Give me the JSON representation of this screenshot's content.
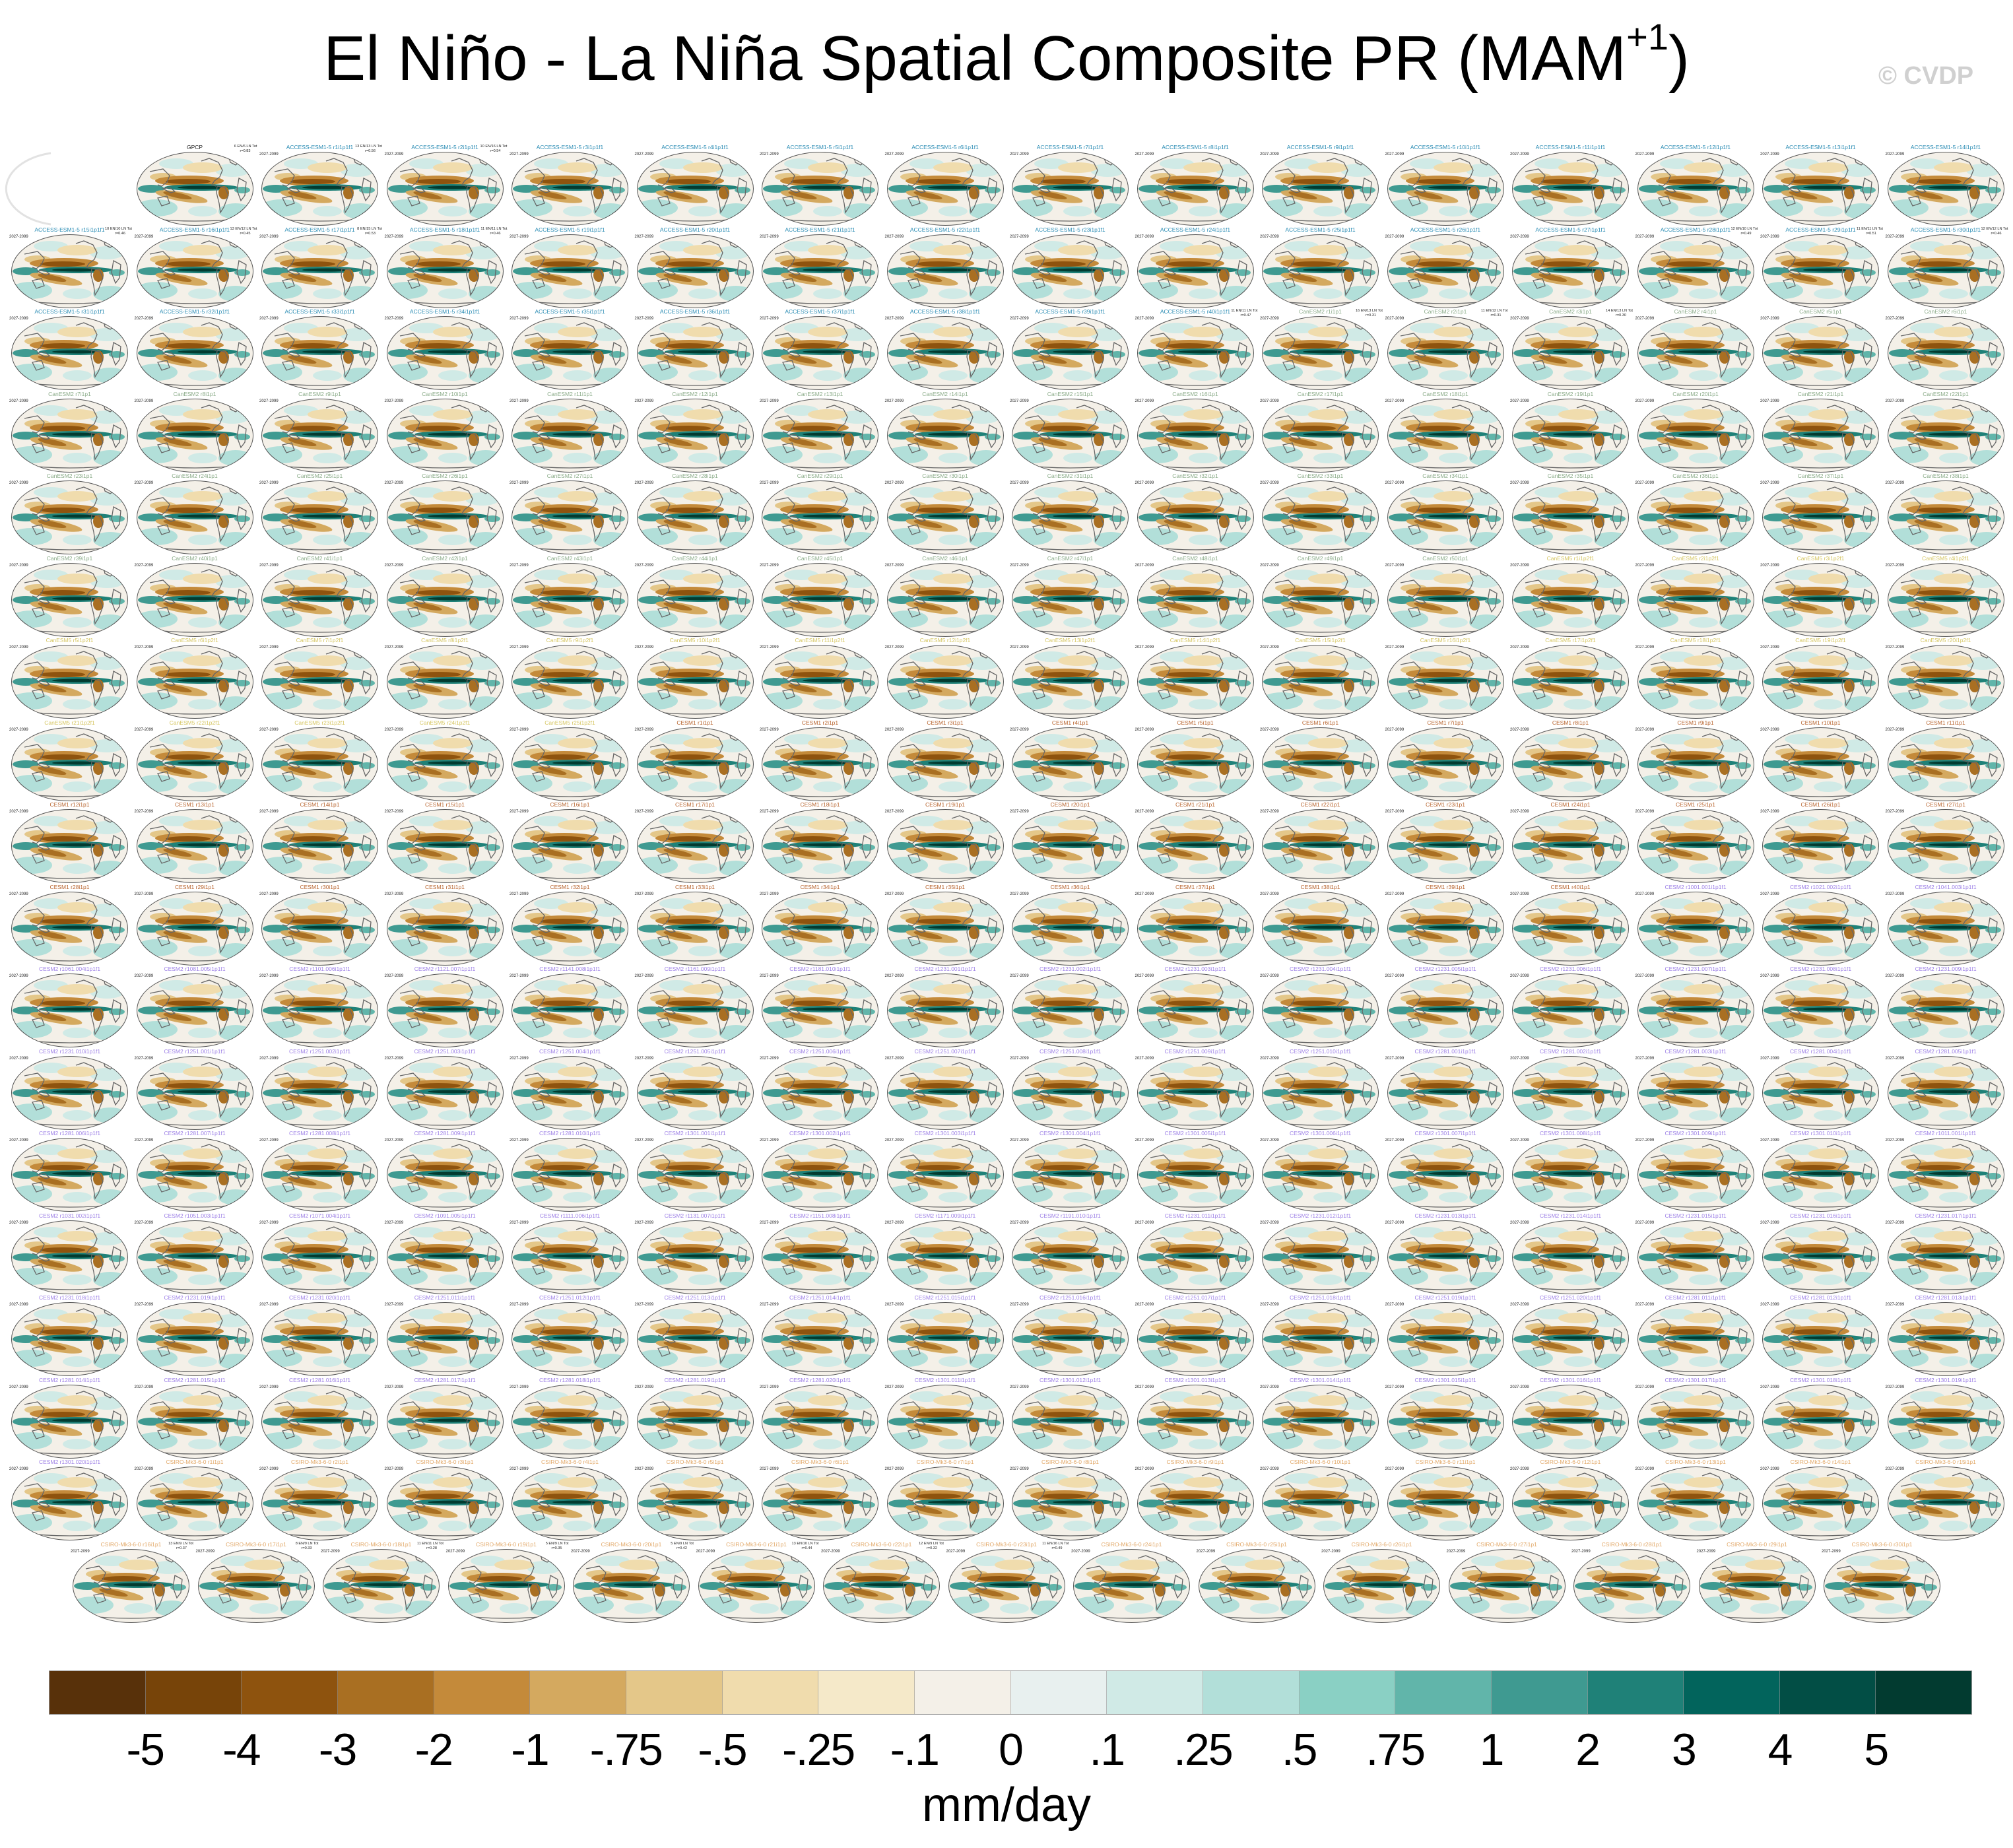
{
  "title": {
    "main": "El Niño - La Niña Spatial Composite PR (MAM",
    "sup": "+1",
    "close": ")"
  },
  "watermark": "© CVDP",
  "period": "2027-2099",
  "groups": [
    {
      "model": "GPCP",
      "color": "#222222",
      "members": [
        ""
      ],
      "observational": true
    },
    {
      "model": "ACCESS-ESM1-5",
      "color": "#2a8cb4",
      "member_range": [
        1,
        40
      ],
      "member_suffix": "i1p1f1"
    },
    {
      "model": "CanESM2",
      "color": "#8aab88",
      "member_range": [
        1,
        50
      ],
      "member_suffix": "i1p1"
    },
    {
      "model": "CanESM5",
      "color": "#d6c662",
      "member_range": [
        1,
        25
      ],
      "member_suffix": "i1p2f1"
    },
    {
      "model": "CESM1",
      "color": "#b8642e",
      "member_range": [
        1,
        40
      ],
      "member_suffix": "i1p1"
    },
    {
      "model": "CESM2",
      "color": "#9d80e6",
      "member_suffix": "i1p1f1",
      "members": [
        "r1001.001",
        "r1021.002",
        "r1041.003",
        "r1061.004",
        "r1081.005",
        "r1101.006",
        "r1121.007",
        "r1141.008",
        "r1161.009",
        "r1181.010",
        "r1231.001",
        "r1231.002",
        "r1231.003",
        "r1231.004",
        "r1231.005",
        "r1231.006",
        "r1231.007",
        "r1231.008",
        "r1231.009",
        "r1231.010",
        "r1251.001",
        "r1251.002",
        "r1251.003",
        "r1251.004",
        "r1251.005",
        "r1251.006",
        "r1251.007",
        "r1251.008",
        "r1251.009",
        "r1251.010",
        "r1281.001",
        "r1281.002",
        "r1281.003",
        "r1281.004",
        "r1281.005",
        "r1281.006",
        "r1281.007",
        "r1281.008",
        "r1281.009",
        "r1281.010",
        "r1301.001",
        "r1301.002",
        "r1301.003",
        "r1301.004",
        "r1301.005",
        "r1301.006",
        "r1301.007",
        "r1301.008",
        "r1301.009",
        "r1301.010",
        "r1011.001",
        "r1031.002",
        "r1051.003",
        "r1071.004",
        "r1091.005",
        "r1111.006",
        "r1131.007",
        "r1151.008",
        "r1171.009",
        "r1191.010",
        "r1231.011",
        "r1231.012",
        "r1231.013",
        "r1231.014",
        "r1231.015",
        "r1231.016",
        "r1231.017",
        "r1231.018",
        "r1231.019",
        "r1231.020",
        "r1251.011",
        "r1251.012",
        "r1251.013",
        "r1251.014",
        "r1251.015",
        "r1251.016",
        "r1251.017",
        "r1251.018",
        "r1251.019",
        "r1251.020",
        "r1281.011",
        "r1281.012",
        "r1281.013",
        "r1281.014",
        "r1281.015",
        "r1281.016",
        "r1281.017",
        "r1281.018",
        "r1281.019",
        "r1281.020",
        "r1301.011",
        "r1301.012",
        "r1301.013",
        "r1301.014",
        "r1301.015",
        "r1301.016",
        "r1301.017",
        "r1301.018",
        "r1301.019",
        "r1301.020"
      ]
    },
    {
      "model": "CSIRO-Mk3-6-0",
      "color": "#e2a868",
      "member_range": [
        1,
        30
      ],
      "member_suffix": "i1p1"
    }
  ],
  "stats": {
    "GPCP": [
      "6 EN/6 LN Tot",
      "r=0.83"
    ],
    "ACCESS-ESM1-5 r1i1p1f1": [
      "13 EN/13 LN Tot",
      "r=0.56"
    ],
    "ACCESS-ESM1-5 r2i1p1f1": [
      "10 EN/16 LN Tot",
      "r=0.54"
    ],
    "ACCESS-ESM1-5 r15i1p1f1": [
      "10 EN/10 LN Tot",
      "r=0.46"
    ],
    "ACCESS-ESM1-5 r16i1p1f1": [
      "13 EN/12 LN Tot",
      "r=0.45"
    ],
    "ACCESS-ESM1-5 r17i1p1f1": [
      "8 EN/15 LN Tot",
      "r=0.53"
    ],
    "ACCESS-ESM1-5 r18i1p1f1": [
      "11 EN/11 LN Tot",
      "r=0.46"
    ],
    "ACCESS-ESM1-5 r28i1p1f1": [
      "12 EN/10 LN Tot",
      "r=0.49"
    ],
    "ACCESS-ESM1-5 r29i1p1f1": [
      "11 EN/11 LN Tot",
      "r=0.51"
    ],
    "ACCESS-ESM1-5 r30i1p1f1": [
      "12 EN/12 LN Tot",
      "r=0.46"
    ],
    "ACCESS-ESM1-5 r40i1p1f1": [
      "11 EN/11 LN Tot",
      "r=0.47"
    ],
    "CanESM2 r1i1p1": [
      "16 EN/13 LN Tot",
      "r=0.31"
    ],
    "CanESM2 r2i1p1": [
      "11 EN/12 LN Tot",
      "r=0.31"
    ],
    "CanESM2 r3i1p1": [
      "14 EN/13 LN Tot",
      "r=0.30"
    ],
    "CSIRO-Mk3-6-0 r16i1p1": [
      "13 EN/9 LN Tot",
      "r=0.37"
    ],
    "CSIRO-Mk3-6-0 r17i1p1": [
      "8 EN/9 LN Tot",
      "r=0.33"
    ],
    "CSIRO-Mk3-6-0 r18i1p1": [
      "11 EN/11 LN Tot",
      "r=0.28"
    ],
    "CSIRO-Mk3-6-0 r19i1p1": [
      "5 EN/9 LN Tot",
      "r=0.35"
    ],
    "CSIRO-Mk3-6-0 r20i1p1": [
      "5 EN/9 LN Tot",
      "r=0.42"
    ],
    "CSIRO-Mk3-6-0 r21i1p1": [
      "13 EN/10 LN Tot",
      "r=0.44"
    ],
    "CSIRO-Mk3-6-0 r22i1p1": [
      "12 EN/9 LN Tot",
      "r=0.32"
    ],
    "CSIRO-Mk3-6-0 r23i1p1": [
      "11 EN/16 LN Tot",
      "r=0.49"
    ]
  },
  "chart_data": {
    "type": "heatmap",
    "title": "El Niño - La Niña Spatial Composite PR (MAM+1)",
    "projection": "global map panels, one per dataset/ensemble member",
    "colorbar": {
      "units": "mm/day",
      "labels": [
        "-5",
        "-4",
        "-3",
        "-2",
        "-1",
        "-.75",
        "-.5",
        "-.25",
        "-.1",
        "0",
        ".1",
        ".25",
        ".5",
        ".75",
        "1",
        "2",
        "3",
        "4",
        "5"
      ],
      "colors": [
        "#58310a",
        "#774409",
        "#8e530e",
        "#a96f22",
        "#c48a3a",
        "#d4a95f",
        "#e4c789",
        "#f0dcad",
        "#f5e9c9",
        "#f4f0e8",
        "#e8f0ef",
        "#d0eae6",
        "#b2dfd9",
        "#8ad0c4",
        "#61b5aa",
        "#3f9a91",
        "#1f8178",
        "#02645c",
        "#024e45",
        "#023b30"
      ]
    }
  }
}
